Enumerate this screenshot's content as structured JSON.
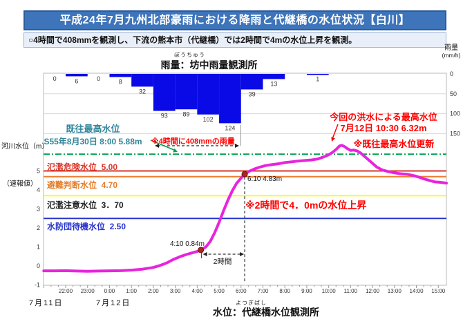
{
  "header": {
    "title": "平成24年7月九州北部豪雨における降雨と代継橋の水位状況【白川】",
    "subtitle": "○4時間で408mmを観測し、下流の熊本市（代継橋）では2時間で4mの水位上昇を観測。"
  },
  "rain_title": {
    "furigana": "ぼうちゅう",
    "text": "雨量：坊中雨量観測所"
  },
  "water_title": {
    "furigana": "よつぎばし",
    "text": "水位：代継橋水位観測所"
  },
  "rain_axis": {
    "title_line1": "雨量",
    "title_line2": "(mm/h)",
    "ticks": [
      "0",
      "50",
      "100",
      "150"
    ],
    "tick_values": [
      0,
      50,
      100,
      150
    ]
  },
  "water_axis": {
    "title": "河川水位（m）",
    "note": "（速報値）",
    "ticks": [
      "5",
      "4",
      "3",
      "2",
      "1",
      "0",
      "-1"
    ],
    "tick_values": [
      5,
      4,
      3,
      2,
      1,
      0,
      -1
    ]
  },
  "x_axis": {
    "hour_labels": [
      "22:00",
      "23:00",
      "0:00",
      "1:00",
      "2:00",
      "3:00",
      "4:00",
      "5:00",
      "6:00",
      "7:00",
      "8:00",
      "9:00",
      "10:00",
      "11:00",
      "12:00",
      "13:00",
      "14:00",
      "15:00"
    ],
    "date_label_1": "7月11日",
    "date_label_2": "7月12日"
  },
  "chart_data": {
    "type": "bar+line",
    "bar_series": {
      "name": "雨量（坊中雨量観測所）",
      "unit": "mm/h",
      "slot_start_times": [
        "21:00",
        "22:00",
        "23:00",
        "0:00",
        "1:00",
        "2:00",
        "3:00",
        "4:00",
        "5:00",
        "6:00",
        "7:00",
        "8:00",
        "9:00"
      ],
      "values": [
        0,
        6,
        0,
        8,
        32,
        93,
        89,
        102,
        124,
        39,
        13,
        0,
        1
      ],
      "labels": [
        "0",
        "6",
        "0",
        "8",
        "32",
        "93",
        "89",
        "102",
        "124",
        "39",
        "13",
        "",
        "1"
      ]
    },
    "line_series": {
      "name": "水位（代継橋水位観測所）",
      "unit": "m",
      "points": [
        [
          0,
          -0.26
        ],
        [
          0.5,
          -0.26
        ],
        [
          1,
          -0.25
        ],
        [
          1.5,
          -0.27
        ],
        [
          2,
          -0.28
        ],
        [
          2.5,
          -0.27
        ],
        [
          3,
          -0.26
        ],
        [
          3.5,
          -0.25
        ],
        [
          4,
          -0.22
        ],
        [
          4.5,
          -0.17
        ],
        [
          5,
          -0.08
        ],
        [
          5.3,
          0.02
        ],
        [
          5.6,
          0.15
        ],
        [
          5.9,
          0.33
        ],
        [
          6.2,
          0.48
        ],
        [
          6.5,
          0.6
        ],
        [
          6.8,
          0.7
        ],
        [
          7,
          0.76
        ],
        [
          7.17,
          0.84
        ],
        [
          7.4,
          1.0
        ],
        [
          7.6,
          1.3
        ],
        [
          7.8,
          1.75
        ],
        [
          8,
          2.3
        ],
        [
          8.2,
          2.9
        ],
        [
          8.4,
          3.45
        ],
        [
          8.6,
          3.95
        ],
        [
          8.8,
          4.35
        ],
        [
          9,
          4.62
        ],
        [
          9.17,
          4.83
        ],
        [
          9.35,
          4.97
        ],
        [
          9.6,
          5.1
        ],
        [
          9.85,
          5.2
        ],
        [
          10.1,
          5.28
        ],
        [
          10.4,
          5.33
        ],
        [
          10.7,
          5.38
        ],
        [
          11,
          5.44
        ],
        [
          11.3,
          5.48
        ],
        [
          11.6,
          5.52
        ],
        [
          11.9,
          5.55
        ],
        [
          12.2,
          5.58
        ],
        [
          12.5,
          5.63
        ],
        [
          12.8,
          5.75
        ],
        [
          13,
          5.85
        ],
        [
          13.2,
          6.0
        ],
        [
          13.35,
          6.15
        ],
        [
          13.5,
          6.32
        ],
        [
          13.6,
          6.35
        ],
        [
          13.7,
          6.3
        ],
        [
          13.85,
          6.18
        ],
        [
          14,
          6.08
        ],
        [
          14.15,
          6.1
        ],
        [
          14.3,
          6.05
        ],
        [
          14.45,
          5.95
        ],
        [
          14.6,
          5.8
        ],
        [
          14.8,
          5.6
        ],
        [
          15,
          5.4
        ],
        [
          15.2,
          5.2
        ],
        [
          15.45,
          5.05
        ],
        [
          15.7,
          4.97
        ],
        [
          16,
          4.9
        ],
        [
          16.3,
          4.85
        ],
        [
          16.6,
          4.82
        ],
        [
          16.9,
          4.75
        ],
        [
          17.1,
          4.68
        ],
        [
          17.35,
          4.58
        ],
        [
          17.6,
          4.5
        ],
        [
          17.85,
          4.42
        ],
        [
          18.1,
          4.4
        ],
        [
          18.37,
          4.36
        ]
      ]
    },
    "levels": [
      {
        "label": "既往最高水位",
        "sublabel": "S55年8月30日 8:00  5.88m",
        "value": 5.88,
        "line_color": "#00a050",
        "text_color": "#31859b",
        "style": "dashdot"
      },
      {
        "label": "氾濫危険水位  5.00",
        "value": 5.0,
        "line_color": "#d8362a",
        "text_color": "#d8362a",
        "style": "solid"
      },
      {
        "label": "避難判断水位  4.70",
        "value": 4.7,
        "line_color": "#ed7d31",
        "text_color": "#e47c28",
        "style": "solid"
      },
      {
        "label": "氾濫注意水位  3．70",
        "value": 3.7,
        "line_color": "#ffff00",
        "text_color": "#222222",
        "style": "solid"
      },
      {
        "label": "水防団待機水位  2.50",
        "value": 2.5,
        "line_color": "#2733cc",
        "text_color": "#2733cc",
        "style": "solid"
      }
    ],
    "markers": [
      {
        "label": "4:10  0.84m",
        "t": 7.167,
        "v": 0.84
      },
      {
        "label": "6:10  4.83m",
        "t": 9.167,
        "v": 4.83
      }
    ],
    "y_range": [
      -1,
      7
    ],
    "rain_range": [
      0,
      150
    ],
    "peak": {
      "time": "7月12日 10:30",
      "value": 6.32
    }
  },
  "annotations": {
    "rain_total": "※4時間に408mmの雨量",
    "two_hours": "2時間",
    "rise": "※2時間で4．0mの水位上昇",
    "peak_line1": "今回の洪水による最高水位",
    "peak_line2": "7月12日 10:30  6.32m",
    "peak_line3": "※既往最高水位更新"
  },
  "colors": {
    "bar": "#0a0ae6",
    "line": "#e824dc",
    "marker": "#a8281e",
    "title_bg": "#3d74ba",
    "accent_red": "#ff0000",
    "grid": "#d8d8d8"
  }
}
